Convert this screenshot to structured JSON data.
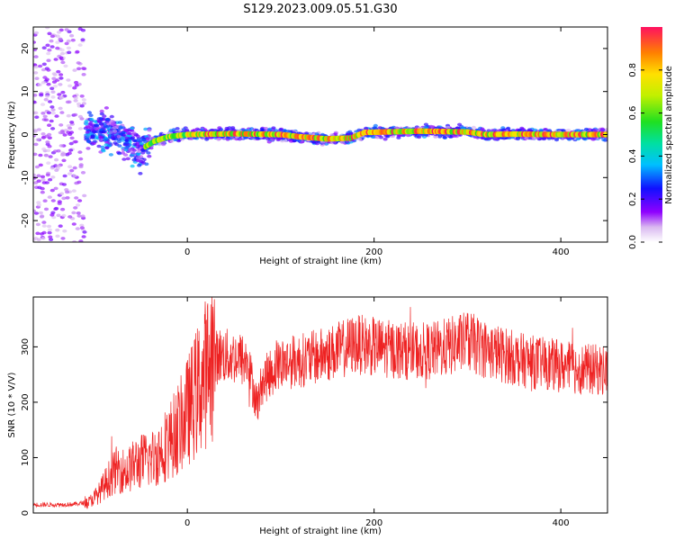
{
  "title": "S129.2023.009.05.51.G30",
  "chart_data": [
    {
      "type": "heatmap",
      "name": "spectrogram",
      "xlabel": "Height of straight line (km)",
      "ylabel": "Frequency (Hz)",
      "xlim": [
        -165,
        450
      ],
      "ylim": [
        -25,
        25
      ],
      "xticks": [
        0,
        200,
        400
      ],
      "yticks": [
        -20,
        -10,
        0,
        10,
        20
      ],
      "colorbar": {
        "label": "Normalized spectral amplitude",
        "range": [
          0,
          1
        ],
        "ticks": [
          0.0,
          0.2,
          0.4,
          0.6,
          0.8
        ]
      },
      "dominant_frequency_trace": [
        {
          "x": -100,
          "y": 1.0
        },
        {
          "x": -80,
          "y": 0.5
        },
        {
          "x": -60,
          "y": -2.5
        },
        {
          "x": -50,
          "y": -3.5
        },
        {
          "x": -35,
          "y": -1.5
        },
        {
          "x": -20,
          "y": -0.5
        },
        {
          "x": 0,
          "y": 0.0
        },
        {
          "x": 50,
          "y": 0.2
        },
        {
          "x": 100,
          "y": 0.0
        },
        {
          "x": 120,
          "y": -0.5
        },
        {
          "x": 150,
          "y": -1.0
        },
        {
          "x": 175,
          "y": -0.8
        },
        {
          "x": 190,
          "y": 0.5
        },
        {
          "x": 250,
          "y": 0.8
        },
        {
          "x": 300,
          "y": 0.6
        },
        {
          "x": 320,
          "y": 0.0
        },
        {
          "x": 350,
          "y": 0.1
        },
        {
          "x": 400,
          "y": 0.0
        },
        {
          "x": 450,
          "y": 0.0
        }
      ]
    },
    {
      "type": "line",
      "name": "snr",
      "xlabel": "Height of straight line (km)",
      "ylabel": "SNR (10 * V/V)",
      "xlim": [
        -165,
        450
      ],
      "ylim": [
        0,
        390
      ],
      "xticks": [
        0,
        200,
        400
      ],
      "yticks": [
        0,
        100,
        200,
        300
      ],
      "color": "#ee2222",
      "x": [
        -165,
        -140,
        -120,
        -105,
        -95,
        -85,
        -75,
        -65,
        -55,
        -45,
        -35,
        -25,
        -15,
        -5,
        5,
        15,
        25,
        35,
        45,
        55,
        65,
        70,
        75,
        80,
        90,
        100,
        120,
        140,
        160,
        180,
        200,
        220,
        240,
        260,
        280,
        300,
        320,
        340,
        360,
        380,
        400,
        420,
        450
      ],
      "y": [
        15,
        15,
        16,
        20,
        35,
        60,
        80,
        75,
        90,
        95,
        100,
        120,
        140,
        165,
        200,
        235,
        275,
        285,
        282,
        280,
        270,
        230,
        195,
        235,
        255,
        270,
        275,
        282,
        292,
        305,
        300,
        295,
        292,
        292,
        300,
        310,
        295,
        285,
        275,
        270,
        265,
        260,
        258
      ]
    }
  ]
}
